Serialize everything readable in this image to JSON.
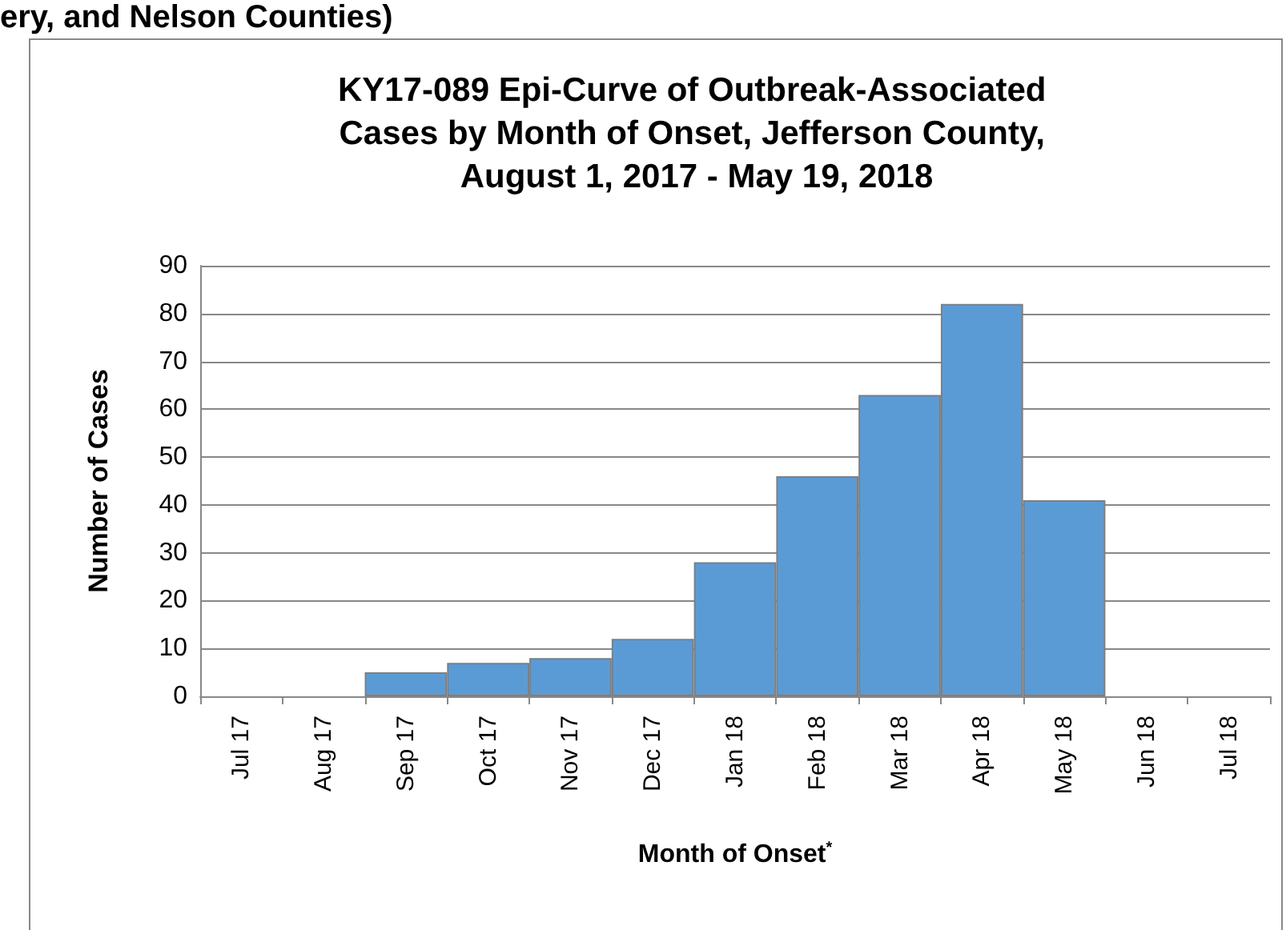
{
  "chart_data": {
    "type": "bar",
    "title": "KY17-089 Epi-Curve of Outbreak-Associated Cases by Month of Onset, Jefferson County, August 1, 2017 - May 19, 2018",
    "annotations": [
      "ery, and Nelson Counties)"
    ],
    "xlabel": "Month of Onset$^{*}$",
    "ylabel": "Number of Cases",
    "categories": [
      "Jul 17",
      "Aug 17",
      "Sep 17",
      "Oct 17",
      "Nov 17",
      "Dec 17",
      "Jan 18",
      "Feb 18",
      "Mar 18",
      "Apr 18",
      "May 18",
      "Jun 18",
      "Jul 18"
    ],
    "values": [
      0,
      0,
      5,
      7,
      8,
      12,
      28,
      46,
      63,
      82,
      41,
      0,
      0
    ],
    "color": "#5b9bd5",
    "ylim": [
      0,
      90
    ],
    "yticks": [
      0,
      10,
      20,
      30,
      40,
      50,
      60,
      70,
      80,
      90
    ],
    "grid": "y"
  }
}
